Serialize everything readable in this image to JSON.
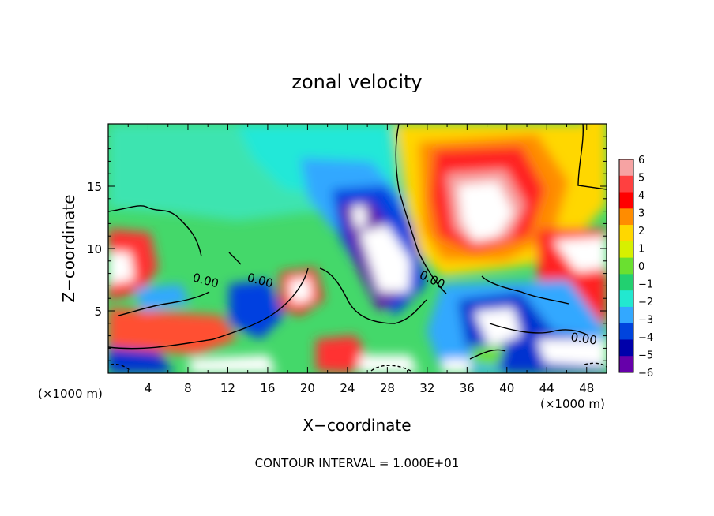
{
  "chart_data": {
    "type": "heatmap",
    "title": "zonal velocity",
    "xlabel": "X−coordinate",
    "ylabel": "Z−coordinate",
    "x_unit_left": "(×1000 m)",
    "x_unit_right": "(×1000 m)",
    "footer": "CONTOUR INTERVAL = 1.000E+01",
    "xlim": [
      0,
      50
    ],
    "ylim": [
      0,
      20
    ],
    "x_ticks": [
      4,
      8,
      12,
      16,
      20,
      24,
      28,
      32,
      36,
      40,
      44,
      48
    ],
    "y_ticks": [
      5,
      10,
      15
    ],
    "contour_labels": [
      "0.00",
      "0.00",
      "0.00",
      "0.00"
    ],
    "colorbar": {
      "min": -6,
      "max": 6,
      "ticks": [
        6,
        5,
        4,
        3,
        2,
        1,
        0,
        -1,
        -2,
        -3,
        -4,
        -5,
        -6
      ],
      "colors": [
        "#f6a3a3",
        "#ff4040",
        "#ff0000",
        "#ff8c00",
        "#ffd700",
        "#d7f000",
        "#6ae030",
        "#22d070",
        "#22e8d0",
        "#33a8ff",
        "#0044dd",
        "#0000aa",
        "#6600aa"
      ]
    },
    "grid": false,
    "legend_placement": "right"
  }
}
